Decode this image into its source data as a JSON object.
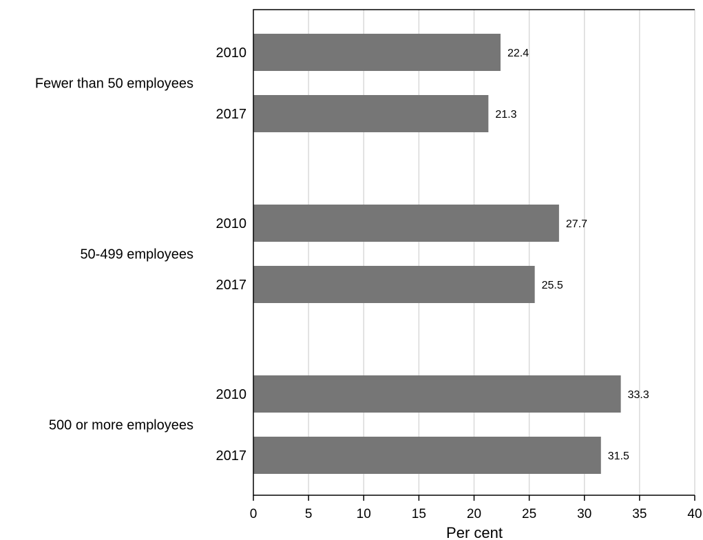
{
  "chart_data": {
    "type": "bar",
    "orientation": "horizontal",
    "title": "",
    "xlabel": "Per cent",
    "ylabel": "",
    "xlim": [
      0,
      40
    ],
    "x_ticks": [
      0,
      5,
      10,
      15,
      20,
      25,
      30,
      35,
      40
    ],
    "grid": true,
    "groups": [
      {
        "name": "Fewer than 50 employees",
        "bars": [
          {
            "label": "2010",
            "value": 22.4
          },
          {
            "label": "2017",
            "value": 21.3
          }
        ]
      },
      {
        "name": "50-499 employees",
        "bars": [
          {
            "label": "2010",
            "value": 27.7
          },
          {
            "label": "2017",
            "value": 25.5
          }
        ]
      },
      {
        "name": "500 or more employees",
        "bars": [
          {
            "label": "2010",
            "value": 33.3
          },
          {
            "label": "2017",
            "value": 31.5
          }
        ]
      }
    ],
    "colors": {
      "bar": "#767676",
      "grid": "#d9d9d9"
    }
  }
}
